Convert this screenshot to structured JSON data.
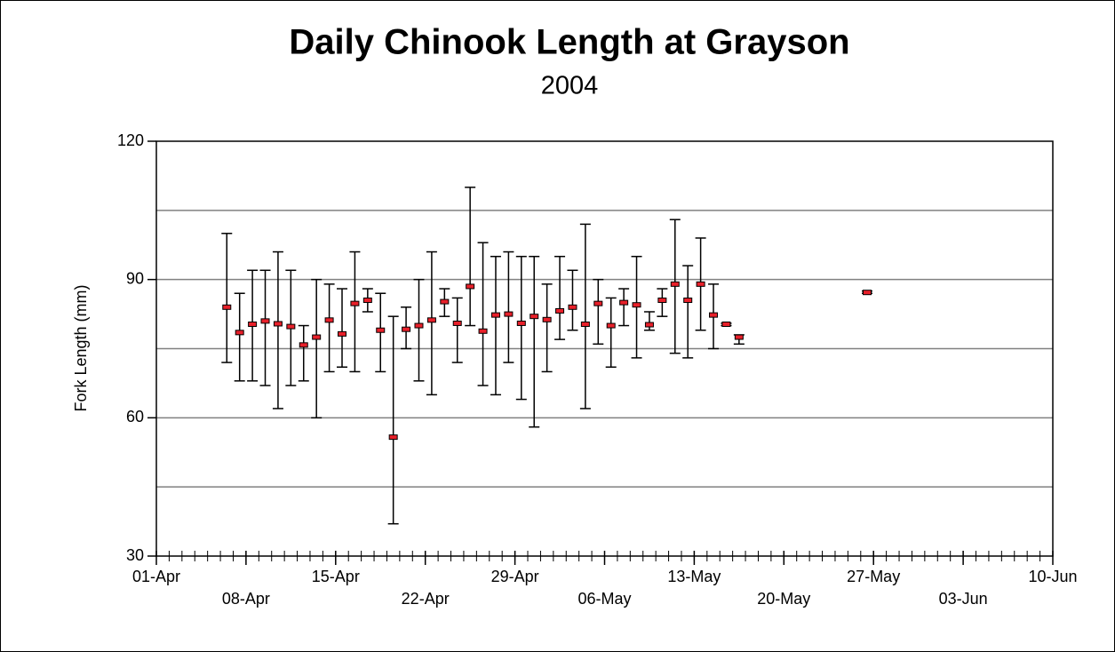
{
  "chart_data": {
    "type": "range",
    "title": "Daily Chinook Length at Grayson",
    "subtitle": "2004",
    "y_label": "Fork Length (mm)",
    "x": [
      "06-Apr",
      "07-Apr",
      "08-Apr",
      "09-Apr",
      "10-Apr",
      "11-Apr",
      "12-Apr",
      "13-Apr",
      "14-Apr",
      "15-Apr",
      "16-Apr",
      "17-Apr",
      "18-Apr",
      "19-Apr",
      "20-Apr",
      "21-Apr",
      "22-Apr",
      "23-Apr",
      "24-Apr",
      "25-Apr",
      "26-Apr",
      "27-Apr",
      "28-Apr",
      "29-Apr",
      "30-Apr",
      "01-May",
      "02-May",
      "03-May",
      "04-May",
      "05-May",
      "06-May",
      "07-May",
      "08-May",
      "09-May",
      "10-May",
      "11-May",
      "12-May",
      "13-May",
      "14-May",
      "15-May",
      "16-May",
      "26-May"
    ],
    "values": [
      84,
      78.5,
      80.3,
      81,
      80.4,
      79.8,
      75.8,
      77.5,
      81.2,
      78.2,
      84.8,
      85.5,
      79,
      55.8,
      79.2,
      80,
      81.2,
      85.2,
      80.5,
      88.5,
      78.8,
      82.3,
      82.5,
      80.5,
      82,
      81.3,
      83.2,
      84,
      80.3,
      84.8,
      80,
      85,
      84.5,
      80.2,
      85.5,
      89,
      85.5,
      89,
      82.3,
      80.3,
      77.5,
      87.2
    ],
    "low": [
      72,
      68,
      68,
      67,
      62,
      67,
      68,
      60,
      70,
      71,
      70,
      83,
      70,
      37,
      75,
      68,
      65,
      82,
      72,
      80,
      67,
      65,
      72,
      64,
      58,
      70,
      77,
      79,
      62,
      76,
      71,
      80,
      73,
      79,
      82,
      74,
      73,
      79,
      75,
      80,
      76,
      87
    ],
    "high": [
      100,
      87,
      92,
      92,
      96,
      92,
      80,
      90,
      89,
      88,
      96,
      88,
      87,
      82,
      84,
      90,
      96,
      88,
      86,
      110,
      98,
      95,
      96,
      95,
      95,
      89,
      95,
      92,
      102,
      90,
      86,
      88,
      95,
      83,
      88,
      103,
      93,
      99,
      89,
      80.5,
      78,
      87.5
    ],
    "color": "#e8202a",
    "xlim": [
      "01-Apr",
      "10-Jun"
    ],
    "xticks": [
      "01-Apr",
      "08-Apr",
      "15-Apr",
      "22-Apr",
      "29-Apr",
      "06-May",
      "13-May",
      "20-May",
      "27-May",
      "03-Jun",
      "10-Jun"
    ],
    "ylim": [
      30,
      120
    ],
    "yticks": [
      30,
      60,
      90,
      120
    ],
    "ygrid": [
      45,
      60,
      75,
      90,
      105
    ],
    "grid": true
  }
}
